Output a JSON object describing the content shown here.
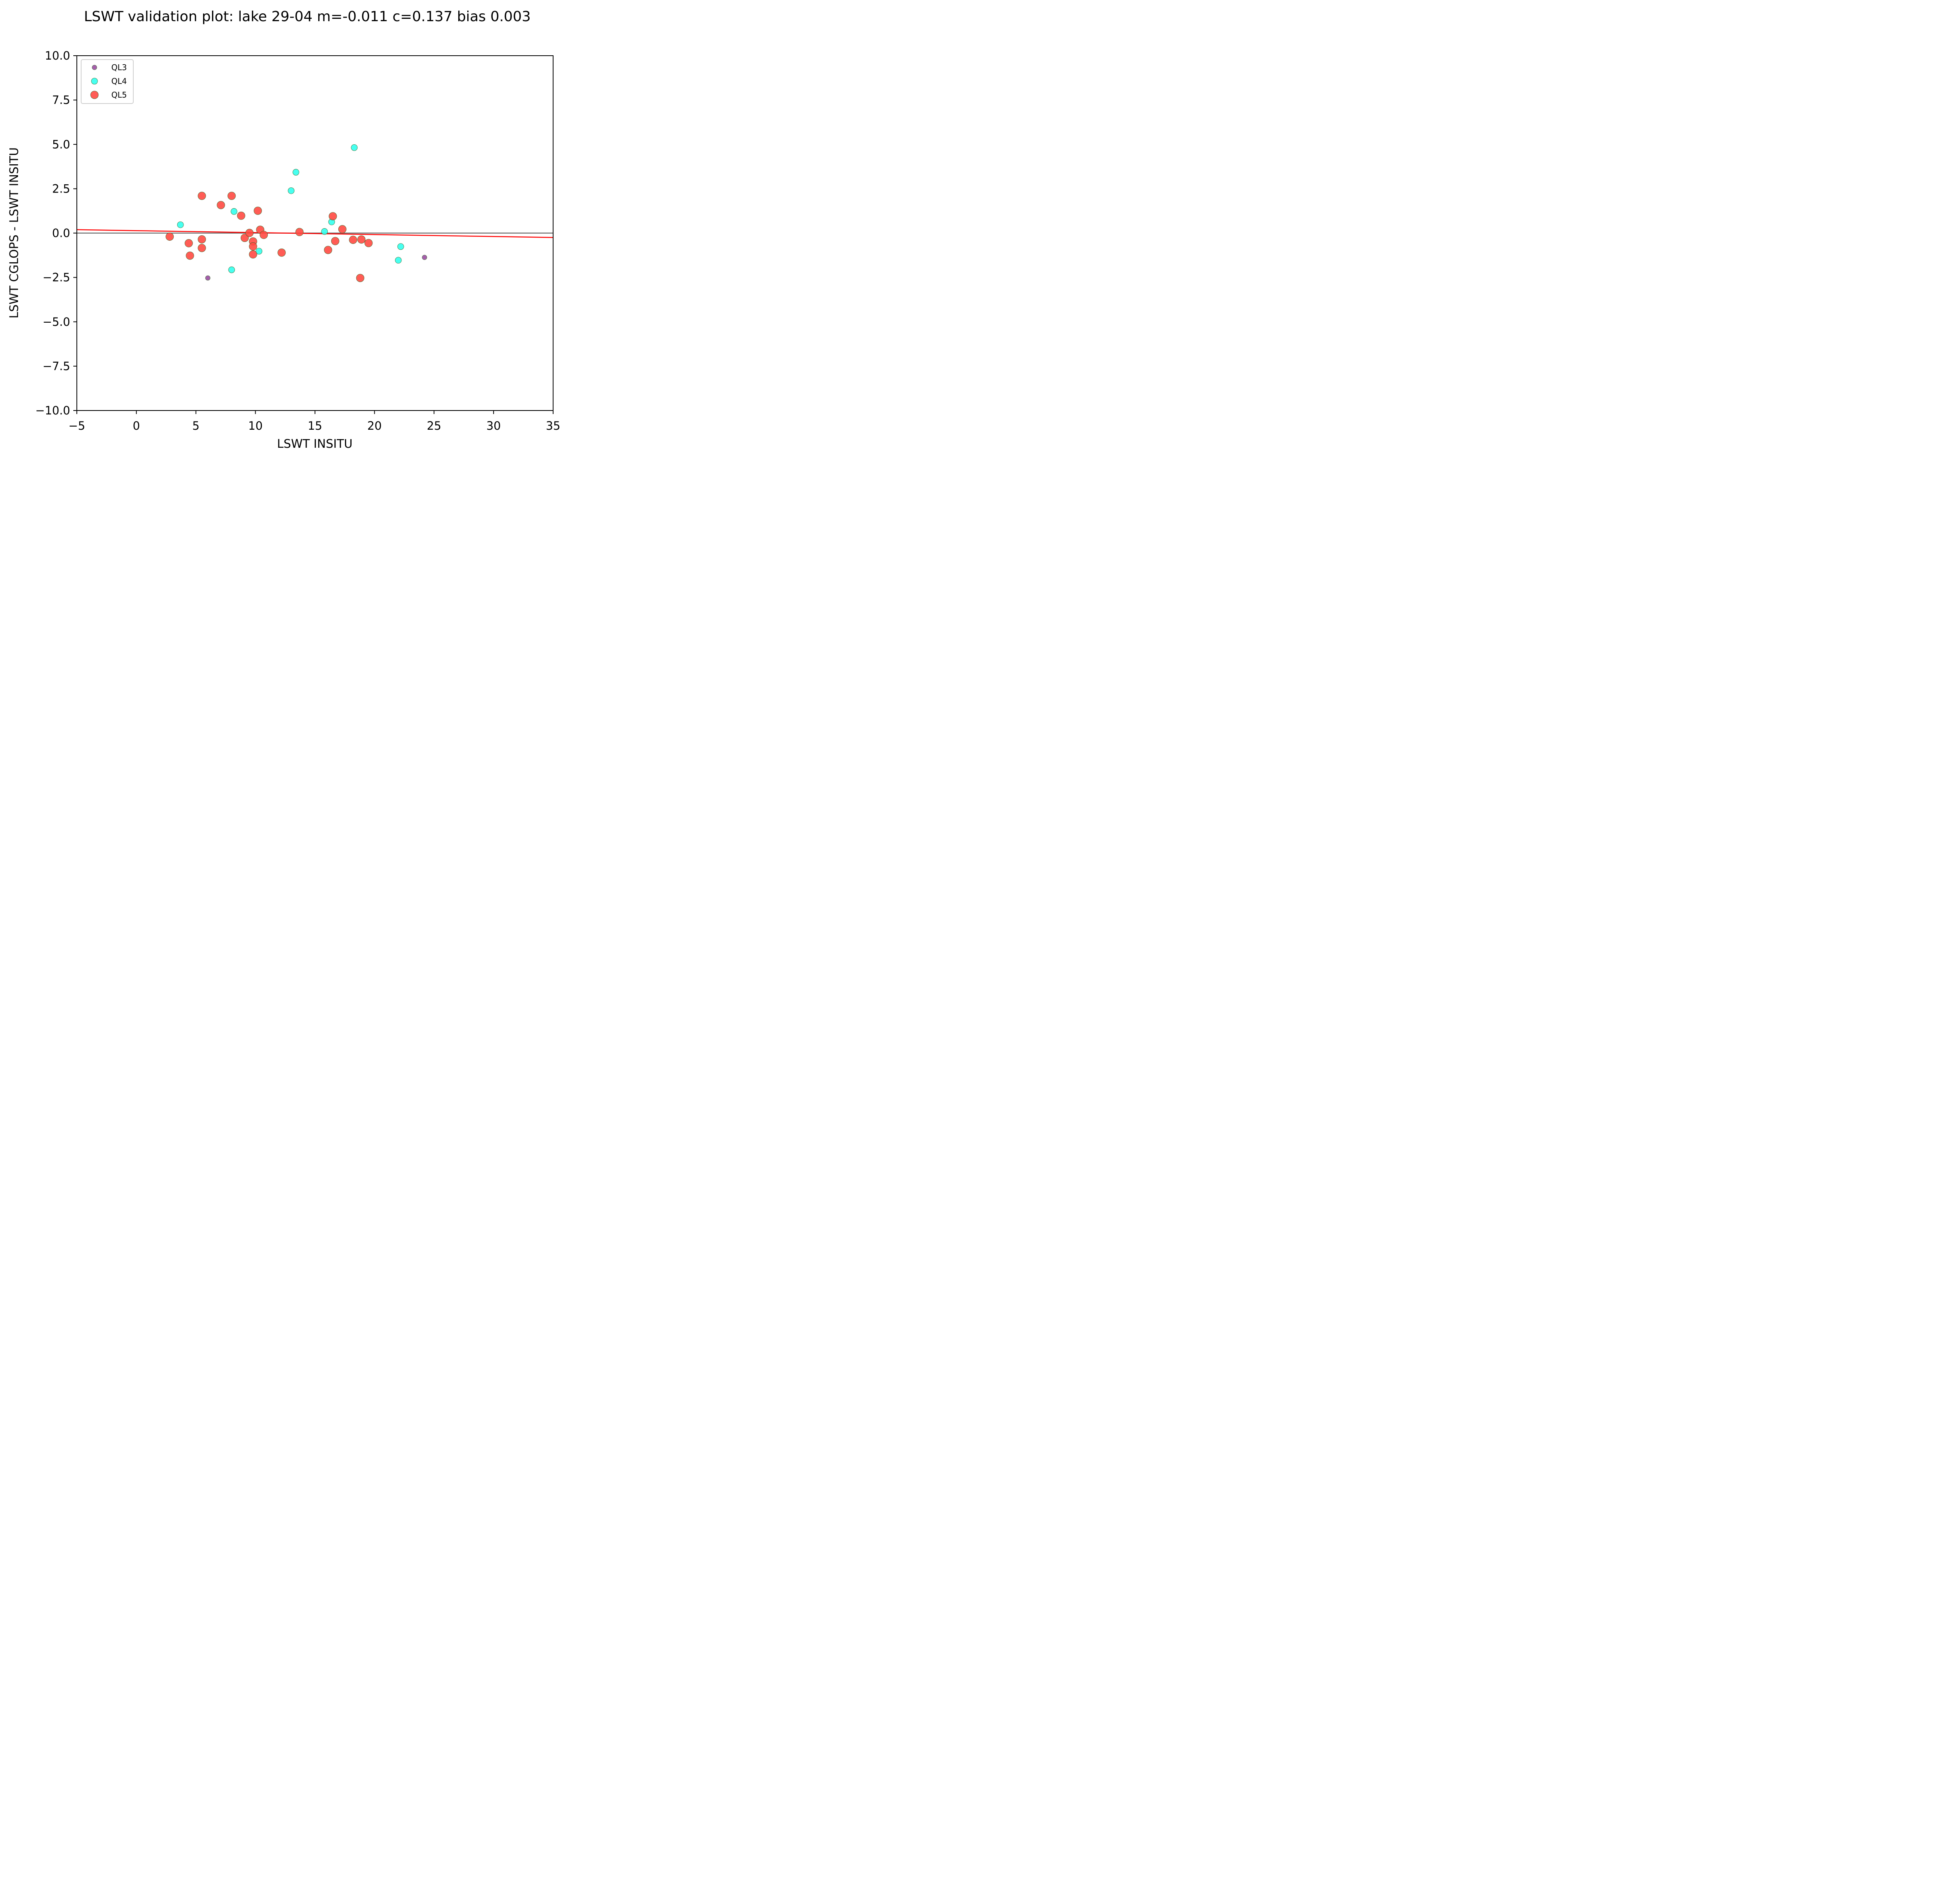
{
  "chart_data": {
    "type": "scatter",
    "title": "LSWT validation plot: lake 29-04 m=-0.011 c=0.137 bias 0.003",
    "xlabel": "LSWT INSITU",
    "ylabel": "LSWT CGLOPS - LSWT INSITU",
    "xlim": [
      -5,
      35
    ],
    "ylim": [
      -10,
      10
    ],
    "xticks": [
      -5,
      0,
      5,
      10,
      15,
      20,
      25,
      30,
      35
    ],
    "xtick_labels": [
      "−5",
      "0",
      "5",
      "10",
      "15",
      "20",
      "25",
      "30",
      "35"
    ],
    "yticks": [
      -10,
      -7.5,
      -5,
      -2.5,
      0,
      2.5,
      5,
      7.5,
      10
    ],
    "ytick_labels": [
      "−10.0",
      "−7.5",
      "−5.0",
      "−2.5",
      "0.0",
      "2.5",
      "5.0",
      "7.5",
      "10.0"
    ],
    "grid": false,
    "legend_position": "top-left",
    "zero_line": {
      "y": 0,
      "color": "#6e6e6e"
    },
    "fit_line": {
      "slope": -0.011,
      "intercept": 0.137,
      "color": "#ff0000"
    },
    "series": [
      {
        "name": "QL3",
        "color": "#9b4ea3",
        "marker_size": "small",
        "x": [
          6.0,
          24.2
        ],
        "y": [
          -2.53,
          -1.37
        ]
      },
      {
        "name": "QL4",
        "color": "#33ffee",
        "marker_size": "medium",
        "x": [
          3.7,
          8.2,
          8.0,
          10.3,
          13.0,
          13.4,
          15.8,
          16.4,
          18.3,
          22.0,
          22.2
        ],
        "y": [
          0.47,
          1.22,
          -2.07,
          -1.02,
          2.39,
          3.43,
          0.09,
          0.63,
          4.82,
          -1.53,
          -0.76
        ]
      },
      {
        "name": "QL5",
        "color": "#ff4a43",
        "marker_size": "large",
        "x": [
          2.8,
          4.4,
          4.5,
          5.5,
          5.5,
          5.5,
          7.1,
          8.0,
          8.8,
          9.1,
          9.5,
          9.8,
          9.8,
          9.8,
          10.2,
          10.4,
          10.7,
          12.2,
          13.7,
          16.1,
          16.5,
          16.7,
          17.3,
          18.2,
          18.8,
          18.9,
          19.5
        ],
        "y": [
          -0.2,
          -0.57,
          -1.27,
          2.1,
          -0.35,
          -0.84,
          1.58,
          2.1,
          0.98,
          -0.27,
          0.01,
          -0.47,
          -0.75,
          -1.2,
          1.26,
          0.19,
          -0.1,
          -1.1,
          0.06,
          -0.95,
          0.95,
          -0.45,
          0.22,
          -0.38,
          -2.53,
          -0.36,
          -0.56
        ]
      }
    ]
  }
}
